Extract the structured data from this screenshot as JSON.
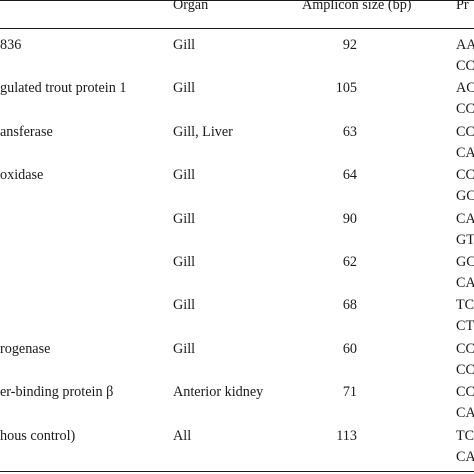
{
  "header": {
    "organ": "Organ",
    "amplicon": "Amplicon size (bp)",
    "primer": "Pr"
  },
  "rows": [
    {
      "gene": "836",
      "organ": "Gill",
      "amplicon": "92",
      "primer1": "AA",
      "primer2": "CC"
    },
    {
      "gene": "gulated trout protein 1",
      "organ": "Gill",
      "amplicon": "105",
      "primer1": "AC",
      "primer2": "CC"
    },
    {
      "gene": "ansferase",
      "organ": "Gill, Liver",
      "amplicon": "63",
      "primer1": "CC",
      "primer2": "CA"
    },
    {
      "gene": "oxidase",
      "organ": "Gill",
      "amplicon": "64",
      "primer1": "CC",
      "primer2": "GC"
    },
    {
      "gene": "",
      "organ": "Gill",
      "amplicon": "90",
      "primer1": "CA",
      "primer2": "GT"
    },
    {
      "gene": "",
      "organ": "Gill",
      "amplicon": "62",
      "primer1": "GC",
      "primer2": "CA"
    },
    {
      "gene": "",
      "organ": "Gill",
      "amplicon": "68",
      "primer1": "TC",
      "primer2": "CT"
    },
    {
      "gene": "rogenase",
      "organ": "Gill",
      "amplicon": "60",
      "primer1": "CC",
      "primer2": "CC"
    },
    {
      "gene": "er-binding protein β",
      "organ": "Anterior kidney",
      "amplicon": "71",
      "primer1": "CC",
      "primer2": "CA"
    },
    {
      "gene": "hous control)",
      "organ": "All",
      "amplicon": "113",
      "primer1": "TC",
      "primer2": "CA"
    }
  ]
}
